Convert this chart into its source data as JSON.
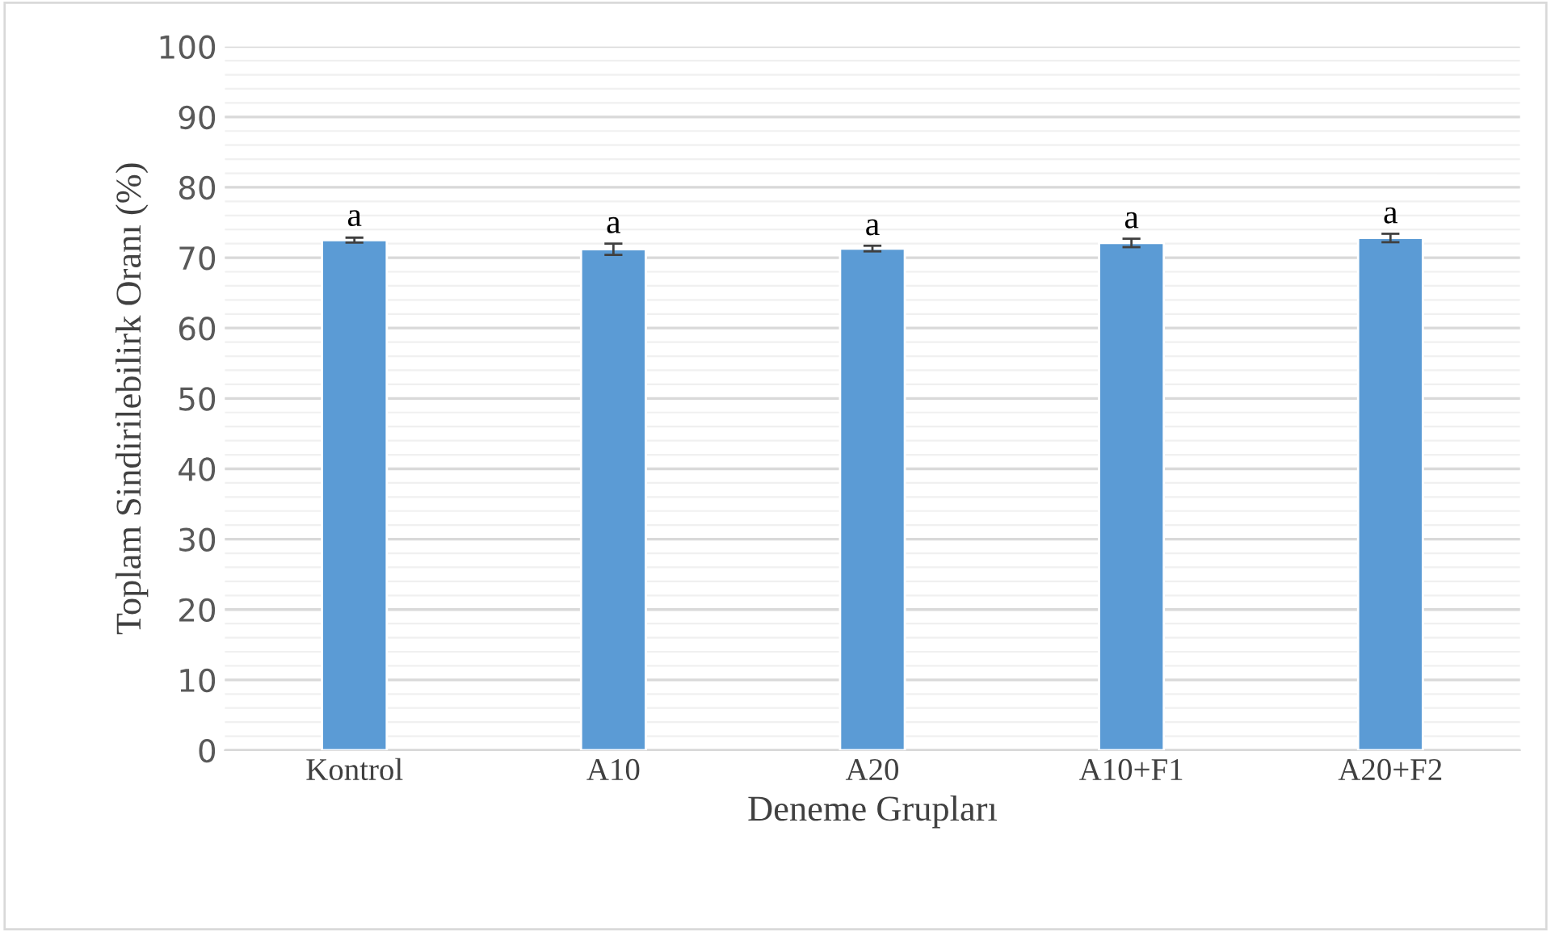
{
  "chart_data": {
    "type": "bar",
    "xlabel": "Deneme Grupları",
    "ylabel": "Toplam Sindirilebilirk Oranı (%)",
    "categories": [
      "Kontrol",
      "A10",
      "A20",
      "A10+F1",
      "A20+F2"
    ],
    "values": [
      72.5,
      71.2,
      71.3,
      72.1,
      72.8
    ],
    "errors": [
      0.35,
      0.8,
      0.4,
      0.6,
      0.6
    ],
    "color": "#5b9bd5",
    "ylim": [
      0,
      100
    ],
    "yticks": [
      0,
      10,
      20,
      30,
      40,
      50,
      60,
      70,
      80,
      90,
      100
    ],
    "grid": "y",
    "annotations": [
      {
        "text": "a",
        "x": "Kontrol",
        "y": 73.5
      },
      {
        "text": "a",
        "x": "A10",
        "y": 72.5
      },
      {
        "text": "a",
        "x": "A20",
        "y": 72.2
      },
      {
        "text": "a",
        "x": "A10+F1",
        "y": 73.2
      },
      {
        "text": "a",
        "x": "A20+F2",
        "y": 73.9
      }
    ]
  }
}
